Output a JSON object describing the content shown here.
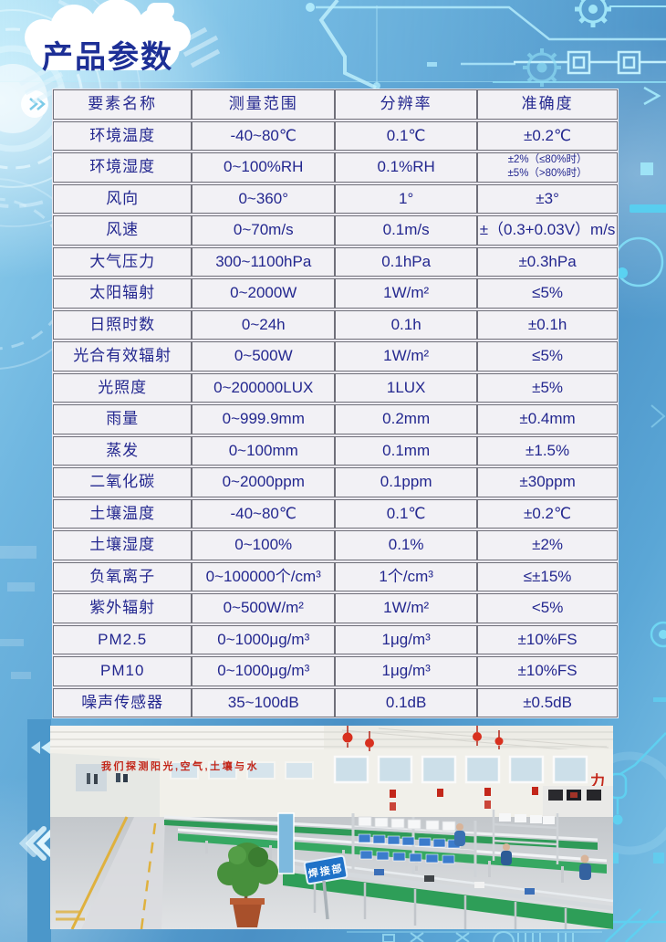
{
  "page": {
    "title": "产品参数"
  },
  "table": {
    "headers": [
      "要素名称",
      "测量范围",
      "分辨率",
      "准确度"
    ],
    "rows": [
      {
        "name": "环境温度",
        "range": "-40~80℃",
        "resolution": "0.1℃",
        "accuracy": "±0.2℃"
      },
      {
        "name": "环境湿度",
        "range": "0~100%RH",
        "resolution": "0.1%RH",
        "accuracy": "±2%（≤80%时）\n±5%（>80%时）",
        "accuracy_small": true
      },
      {
        "name": "风向",
        "range": "0~360°",
        "resolution": "1°",
        "accuracy": "±3°"
      },
      {
        "name": "风速",
        "range": "0~70m/s",
        "resolution": "0.1m/s",
        "accuracy": "±（0.3+0.03V）m/s"
      },
      {
        "name": "大气压力",
        "range": "300~1100hPa",
        "resolution": "0.1hPa",
        "accuracy": "±0.3hPa"
      },
      {
        "name": "太阳辐射",
        "range": "0~2000W",
        "resolution": "1W/m²",
        "accuracy": "≤5%"
      },
      {
        "name": "日照时数",
        "range": "0~24h",
        "resolution": "0.1h",
        "accuracy": "±0.1h"
      },
      {
        "name": "光合有效辐射",
        "range": "0~500W",
        "resolution": "1W/m²",
        "accuracy": "≤5%"
      },
      {
        "name": "光照度",
        "range": "0~200000LUX",
        "resolution": "1LUX",
        "accuracy": "±5%"
      },
      {
        "name": "雨量",
        "range": "0~999.9mm",
        "resolution": "0.2mm",
        "accuracy": "±0.4mm"
      },
      {
        "name": "蒸发",
        "range": "0~100mm",
        "resolution": "0.1mm",
        "accuracy": "±1.5%"
      },
      {
        "name": "二氧化碳",
        "range": "0~2000ppm",
        "resolution": "0.1ppm",
        "accuracy": "±30ppm"
      },
      {
        "name": "土壤温度",
        "range": "-40~80℃",
        "resolution": "0.1℃",
        "accuracy": "±0.2℃"
      },
      {
        "name": "土壤湿度",
        "range": "0~100%",
        "resolution": "0.1%",
        "accuracy": "±2%"
      },
      {
        "name": "负氧离子",
        "range": "0~100000个/cm³",
        "resolution": "1个/cm³",
        "accuracy": "≤±15%"
      },
      {
        "name": "紫外辐射",
        "range": "0~500W/m²",
        "resolution": "1W/m²",
        "accuracy": "<5%"
      },
      {
        "name": "PM2.5",
        "range": "0~1000μg/m³",
        "resolution": "1μg/m³",
        "accuracy": "±10%FS"
      },
      {
        "name": "PM10",
        "range": "0~1000μg/m³",
        "resolution": "1μg/m³",
        "accuracy": "±10%FS"
      },
      {
        "name": "噪声传感器",
        "range": "35~100dB",
        "resolution": "0.1dB",
        "accuracy": "±0.5dB"
      }
    ]
  },
  "photo": {
    "wall_slogan": "我们探测阳光,空气,土壤与水",
    "wall_char": "力",
    "sign_label": "焊接部"
  },
  "colors": {
    "title_text": "#1d2f96",
    "table_text": "#23278f",
    "cell_bg": "#f2f1f5",
    "table_border": "#70707a",
    "circuit_cyan": "#7fd9f3",
    "background_blue": "#5aa2d2",
    "slogan_red": "#c3271a"
  }
}
